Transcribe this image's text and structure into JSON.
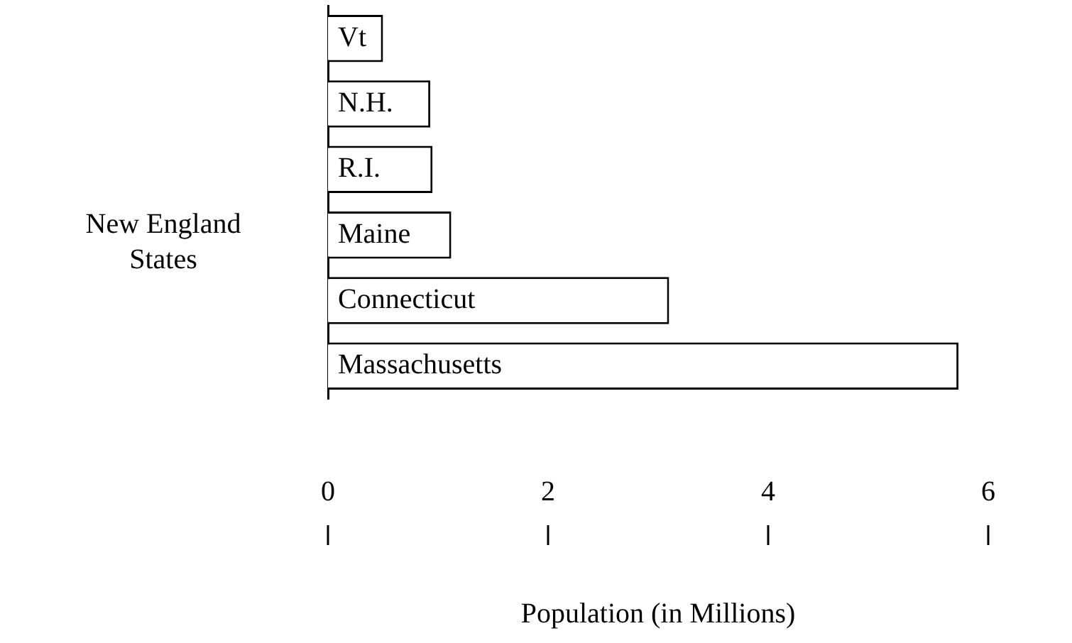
{
  "chart_data": {
    "type": "bar",
    "orientation": "horizontal",
    "xlabel": "Population (in Millions)",
    "ylabel": "New England States",
    "categories": [
      "Vt",
      "N.H.",
      "R.I.",
      "Maine",
      "Connecticut",
      "Massachusetts"
    ],
    "values": [
      0.5,
      0.93,
      0.95,
      1.12,
      3.1,
      5.73
    ],
    "color": "#ffffff",
    "xlim": [
      0,
      6
    ],
    "xticks": [
      0,
      2,
      4,
      6
    ],
    "grid": false,
    "legend": false
  }
}
